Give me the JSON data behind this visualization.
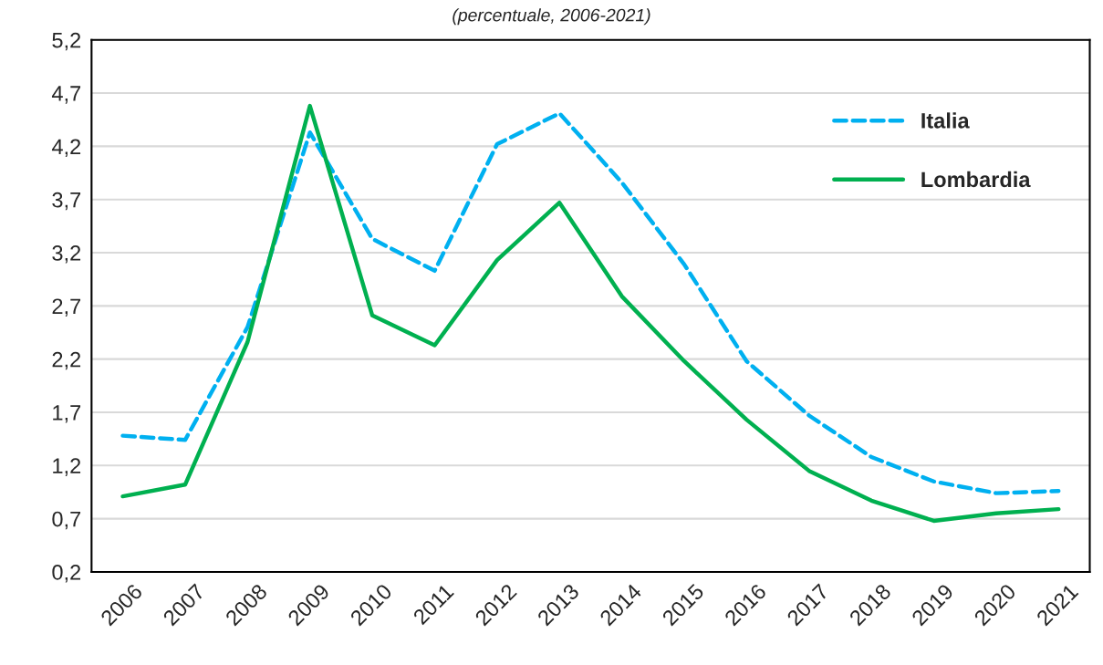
{
  "chart_data": {
    "type": "line",
    "subtitle": "(percentuale, 2006-2021)",
    "categories": [
      "2006",
      "2007",
      "2008",
      "2009",
      "2010",
      "2011",
      "2012",
      "2013",
      "2014",
      "2015",
      "2016",
      "2017",
      "2018",
      "2019",
      "2020",
      "2021"
    ],
    "series": [
      {
        "name": "Italia",
        "color": "#00b0f0",
        "line_style": "dashed",
        "values": [
          1.48,
          1.44,
          2.5,
          4.33,
          3.33,
          3.03,
          4.22,
          4.51,
          3.86,
          3.09,
          2.18,
          1.67,
          1.28,
          1.05,
          0.94,
          0.96
        ]
      },
      {
        "name": "Lombardia",
        "color": "#00b050",
        "line_style": "solid",
        "values": [
          0.91,
          1.02,
          2.36,
          4.58,
          2.61,
          2.33,
          3.13,
          3.67,
          2.79,
          2.18,
          1.63,
          1.15,
          0.87,
          0.68,
          0.75,
          0.79
        ]
      }
    ],
    "ylim": [
      0.2,
      5.2
    ],
    "yticks": [
      {
        "value": 0.2,
        "label": "0,2"
      },
      {
        "value": 0.7,
        "label": "0,7"
      },
      {
        "value": 1.2,
        "label": "1,2"
      },
      {
        "value": 1.7,
        "label": "1,7"
      },
      {
        "value": 2.2,
        "label": "2,2"
      },
      {
        "value": 2.7,
        "label": "2,7"
      },
      {
        "value": 3.2,
        "label": "3,2"
      },
      {
        "value": 3.7,
        "label": "3,7"
      },
      {
        "value": 4.2,
        "label": "4,2"
      },
      {
        "value": 4.7,
        "label": "4,7"
      },
      {
        "value": 5.2,
        "label": "5,2"
      }
    ],
    "grid": "y",
    "legend": "top right",
    "marker": "none"
  }
}
